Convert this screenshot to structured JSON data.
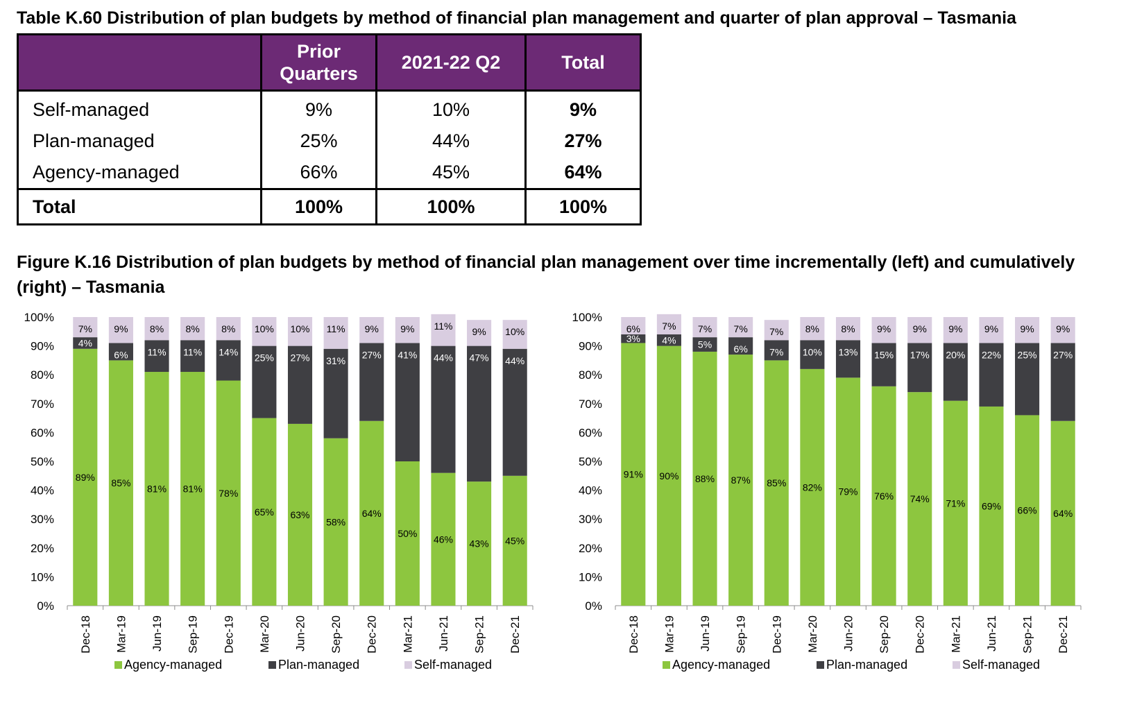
{
  "table": {
    "title": "Table K.60 Distribution of plan budgets by method of financial plan management and quarter of plan approval – Tasmania",
    "headers": [
      "",
      "Prior Quarters",
      "2021-22 Q2",
      "Total"
    ],
    "rows": [
      {
        "label": "Self-managed",
        "prior": "9%",
        "q2": "10%",
        "total": "9%"
      },
      {
        "label": "Plan-managed",
        "prior": "25%",
        "q2": "44%",
        "total": "27%"
      },
      {
        "label": "Agency-managed",
        "prior": "66%",
        "q2": "45%",
        "total": "64%"
      }
    ],
    "total_row": {
      "label": "Total",
      "prior": "100%",
      "q2": "100%",
      "total": "100%"
    }
  },
  "figure": {
    "title": "Figure K.16 Distribution of plan budgets by method of financial plan management over time incrementally (left) and cumulatively (right) – Tasmania"
  },
  "colors": {
    "agency": "#8dc63f",
    "plan": "#3f3f43",
    "self": "#d9cde0",
    "header": "#6c2a75"
  },
  "chart_data": [
    {
      "type": "bar",
      "stacked": true,
      "categories": [
        "Dec-18",
        "Mar-19",
        "Jun-19",
        "Sep-19",
        "Dec-19",
        "Mar-20",
        "Jun-20",
        "Sep-20",
        "Dec-20",
        "Mar-21",
        "Jun-21",
        "Sep-21",
        "Dec-21"
      ],
      "series": [
        {
          "name": "Agency-managed",
          "values": [
            89,
            85,
            81,
            81,
            78,
            65,
            63,
            58,
            64,
            50,
            46,
            43,
            45
          ]
        },
        {
          "name": "Plan-managed",
          "values": [
            4,
            6,
            11,
            11,
            14,
            25,
            27,
            31,
            27,
            41,
            44,
            47,
            44
          ]
        },
        {
          "name": "Self-managed",
          "values": [
            7,
            9,
            8,
            8,
            8,
            10,
            10,
            11,
            9,
            9,
            11,
            9,
            10
          ]
        }
      ],
      "yticks": [
        "0%",
        "10%",
        "20%",
        "30%",
        "40%",
        "50%",
        "60%",
        "70%",
        "80%",
        "90%",
        "100%"
      ],
      "ylim": [
        0,
        100
      ],
      "legend": "bottom"
    },
    {
      "type": "bar",
      "stacked": true,
      "categories": [
        "Dec-18",
        "Mar-19",
        "Jun-19",
        "Sep-19",
        "Dec-19",
        "Mar-20",
        "Jun-20",
        "Sep-20",
        "Dec-20",
        "Mar-21",
        "Jun-21",
        "Sep-21",
        "Dec-21"
      ],
      "series": [
        {
          "name": "Agency-managed",
          "values": [
            91,
            90,
            88,
            87,
            85,
            82,
            79,
            76,
            74,
            71,
            69,
            66,
            64
          ]
        },
        {
          "name": "Plan-managed",
          "values": [
            3,
            4,
            5,
            6,
            7,
            10,
            13,
            15,
            17,
            20,
            22,
            25,
            27
          ]
        },
        {
          "name": "Self-managed",
          "values": [
            6,
            7,
            7,
            7,
            7,
            8,
            8,
            9,
            9,
            9,
            9,
            9,
            9
          ]
        }
      ],
      "yticks": [
        "0%",
        "10%",
        "20%",
        "30%",
        "40%",
        "50%",
        "60%",
        "70%",
        "80%",
        "90%",
        "100%"
      ],
      "ylim": [
        0,
        100
      ],
      "legend": "bottom"
    }
  ]
}
